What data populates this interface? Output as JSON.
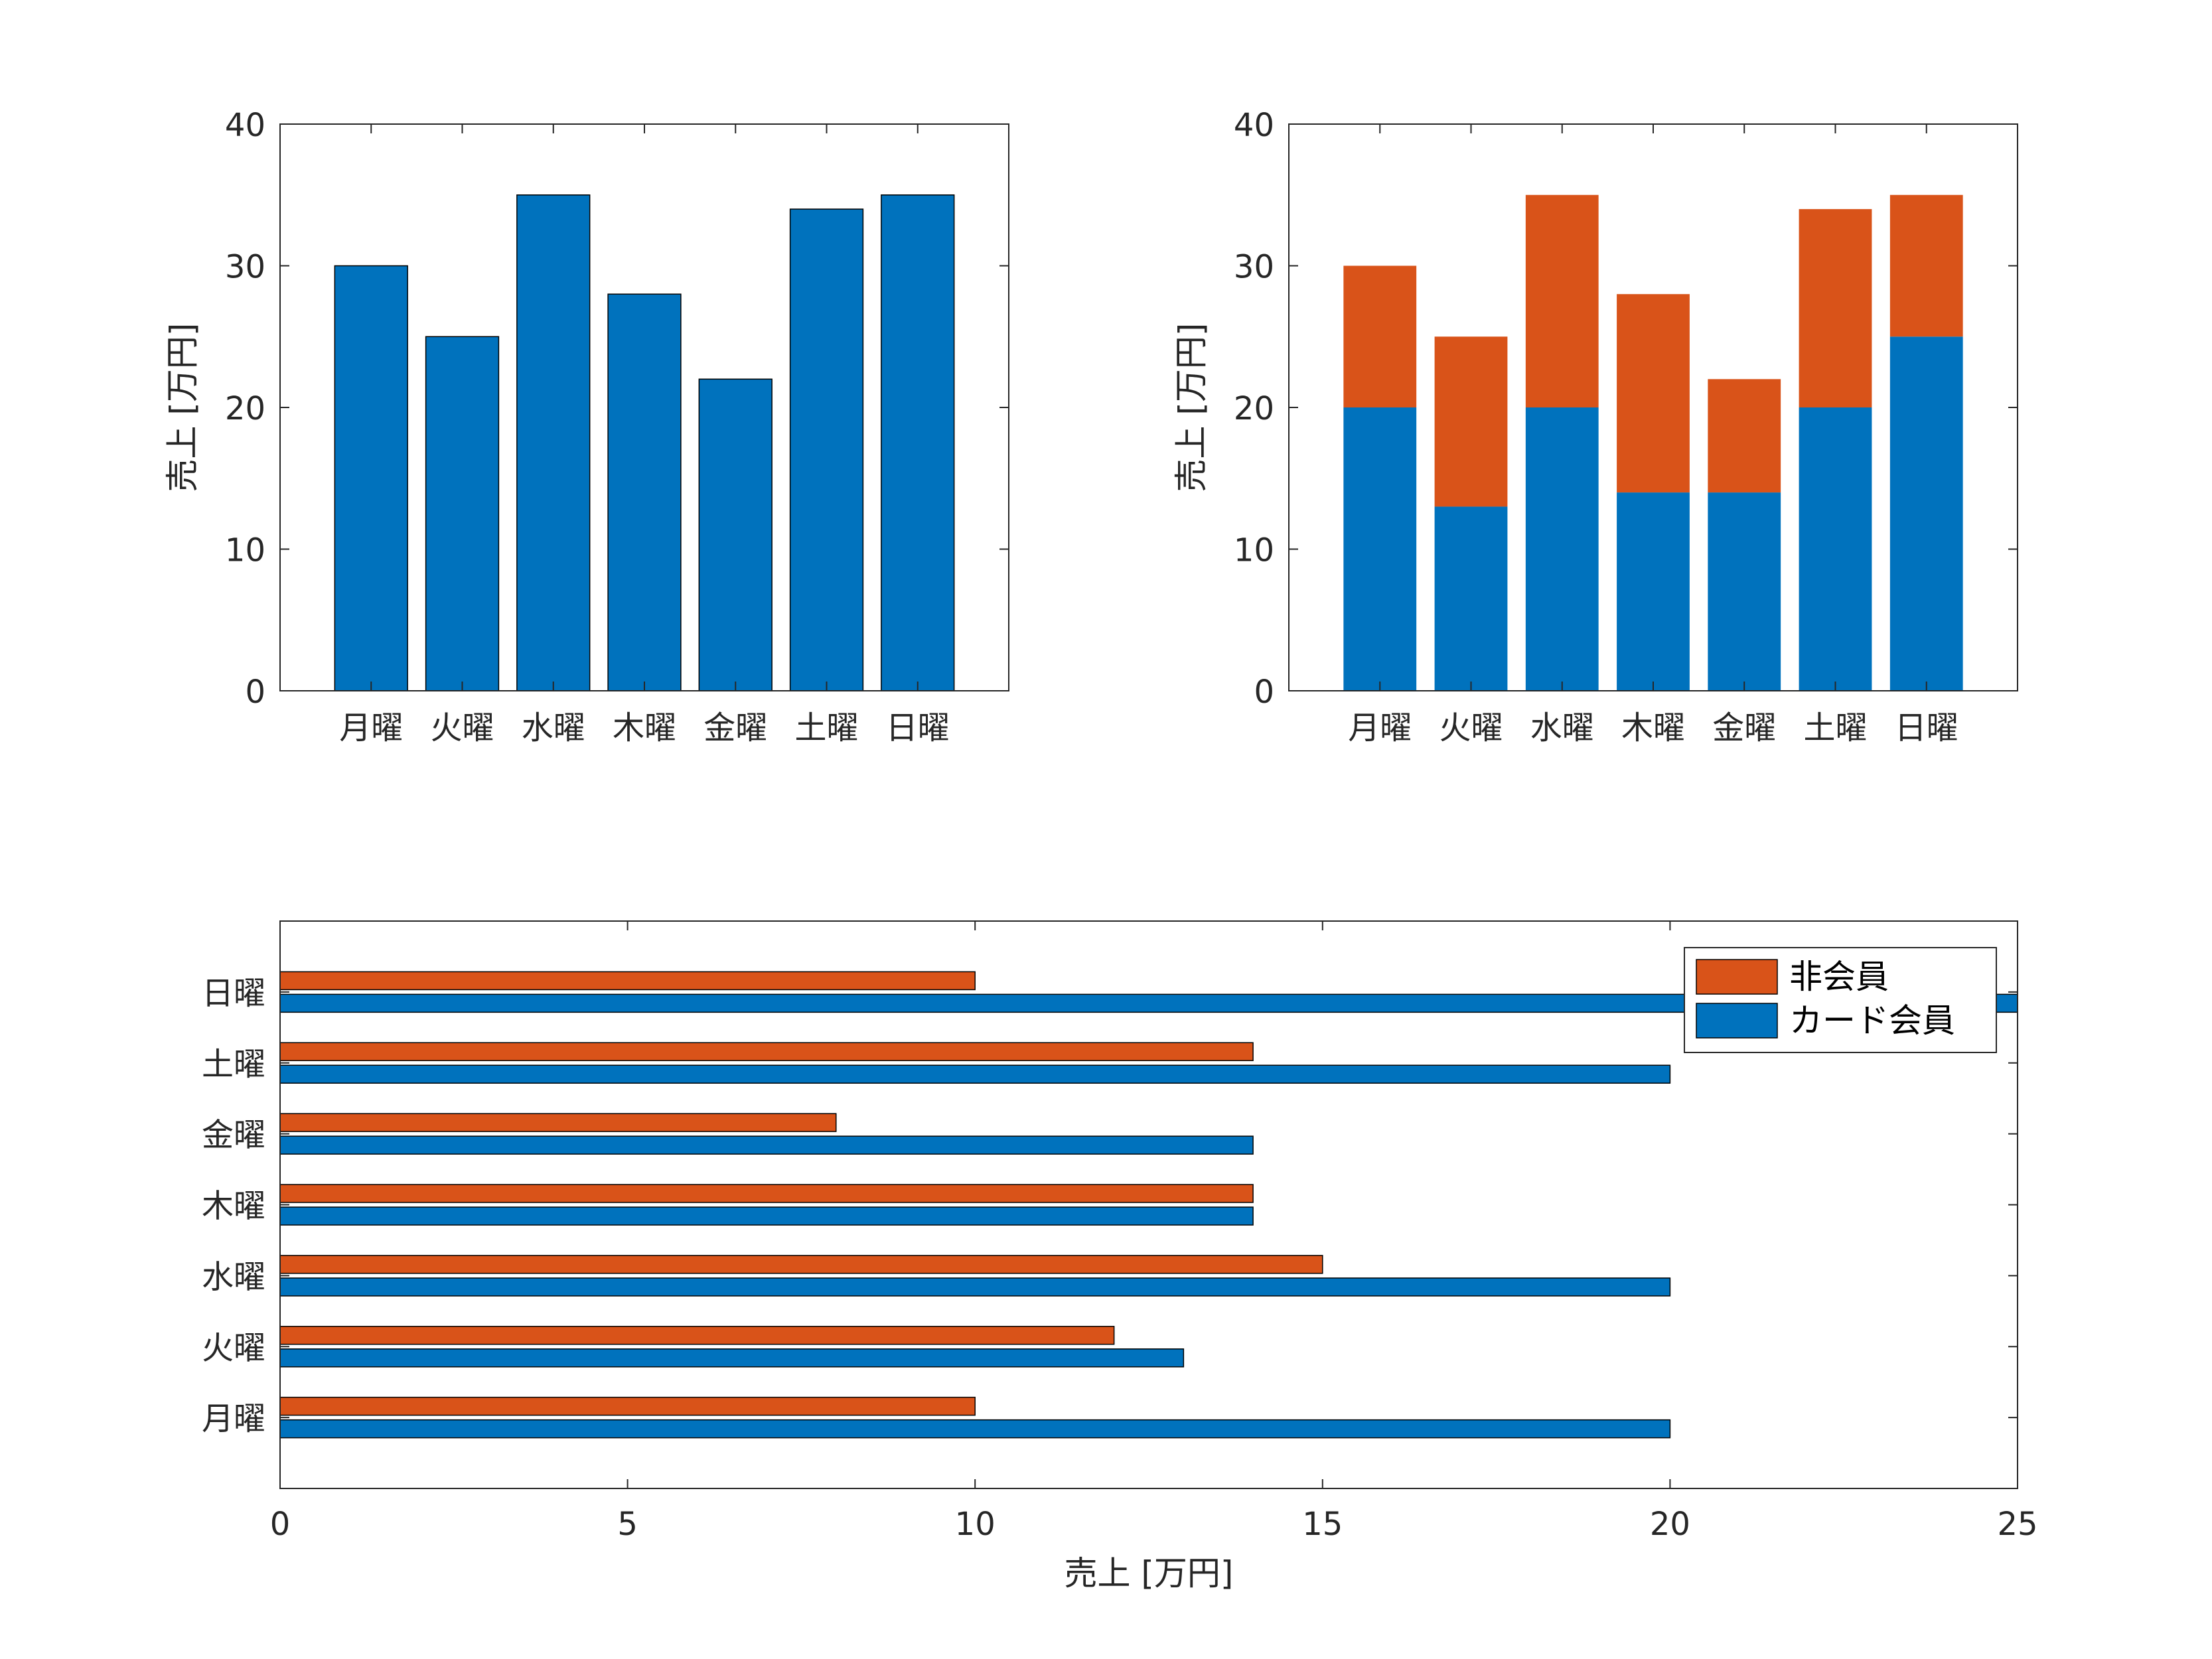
{
  "colors": {
    "card_member": "#0072BD",
    "non_member": "#D95319",
    "axis": "#262626",
    "edge": "#000000"
  },
  "chart_data": [
    {
      "id": "top-left",
      "type": "bar",
      "categories": [
        "月曜",
        "火曜",
        "水曜",
        "木曜",
        "金曜",
        "土曜",
        "日曜"
      ],
      "series": [
        {
          "values": [
            30,
            25,
            35,
            28,
            22,
            34,
            35
          ],
          "color": "#0072BD"
        }
      ],
      "ylabel": "売上 [万円]",
      "ylim": [
        0,
        40
      ],
      "yticks": [
        "0",
        "10",
        "20",
        "30",
        "40"
      ],
      "grid": false
    },
    {
      "id": "top-right",
      "type": "bar",
      "stacked": true,
      "categories": [
        "月曜",
        "火曜",
        "水曜",
        "木曜",
        "金曜",
        "土曜",
        "日曜"
      ],
      "series": [
        {
          "values": [
            20,
            13,
            20,
            14,
            14,
            20,
            25
          ],
          "color": "#0072BD"
        },
        {
          "values": [
            10,
            12,
            15,
            14,
            8,
            14,
            10
          ],
          "color": "#D95319"
        }
      ],
      "ylabel": "売上 [万円]",
      "ylim": [
        0,
        40
      ],
      "yticks": [
        "0",
        "10",
        "20",
        "30",
        "40"
      ],
      "grid": false
    },
    {
      "id": "bottom",
      "type": "bar",
      "orientation": "horizontal",
      "grouped": true,
      "categories": [
        "月曜",
        "火曜",
        "水曜",
        "木曜",
        "金曜",
        "土曜",
        "日曜"
      ],
      "series": [
        {
          "name": "非会員",
          "values": [
            10,
            12,
            15,
            14,
            8,
            14,
            10
          ],
          "color": "#D95319"
        },
        {
          "name": "カード会員",
          "values": [
            20,
            13,
            20,
            14,
            14,
            20,
            25
          ],
          "color": "#0072BD"
        }
      ],
      "xlabel": "売上 [万円]",
      "xlim": [
        0,
        25
      ],
      "xticks": [
        "0",
        "5",
        "10",
        "15",
        "20",
        "25"
      ],
      "legend_position": "top-right",
      "grid": false
    }
  ]
}
